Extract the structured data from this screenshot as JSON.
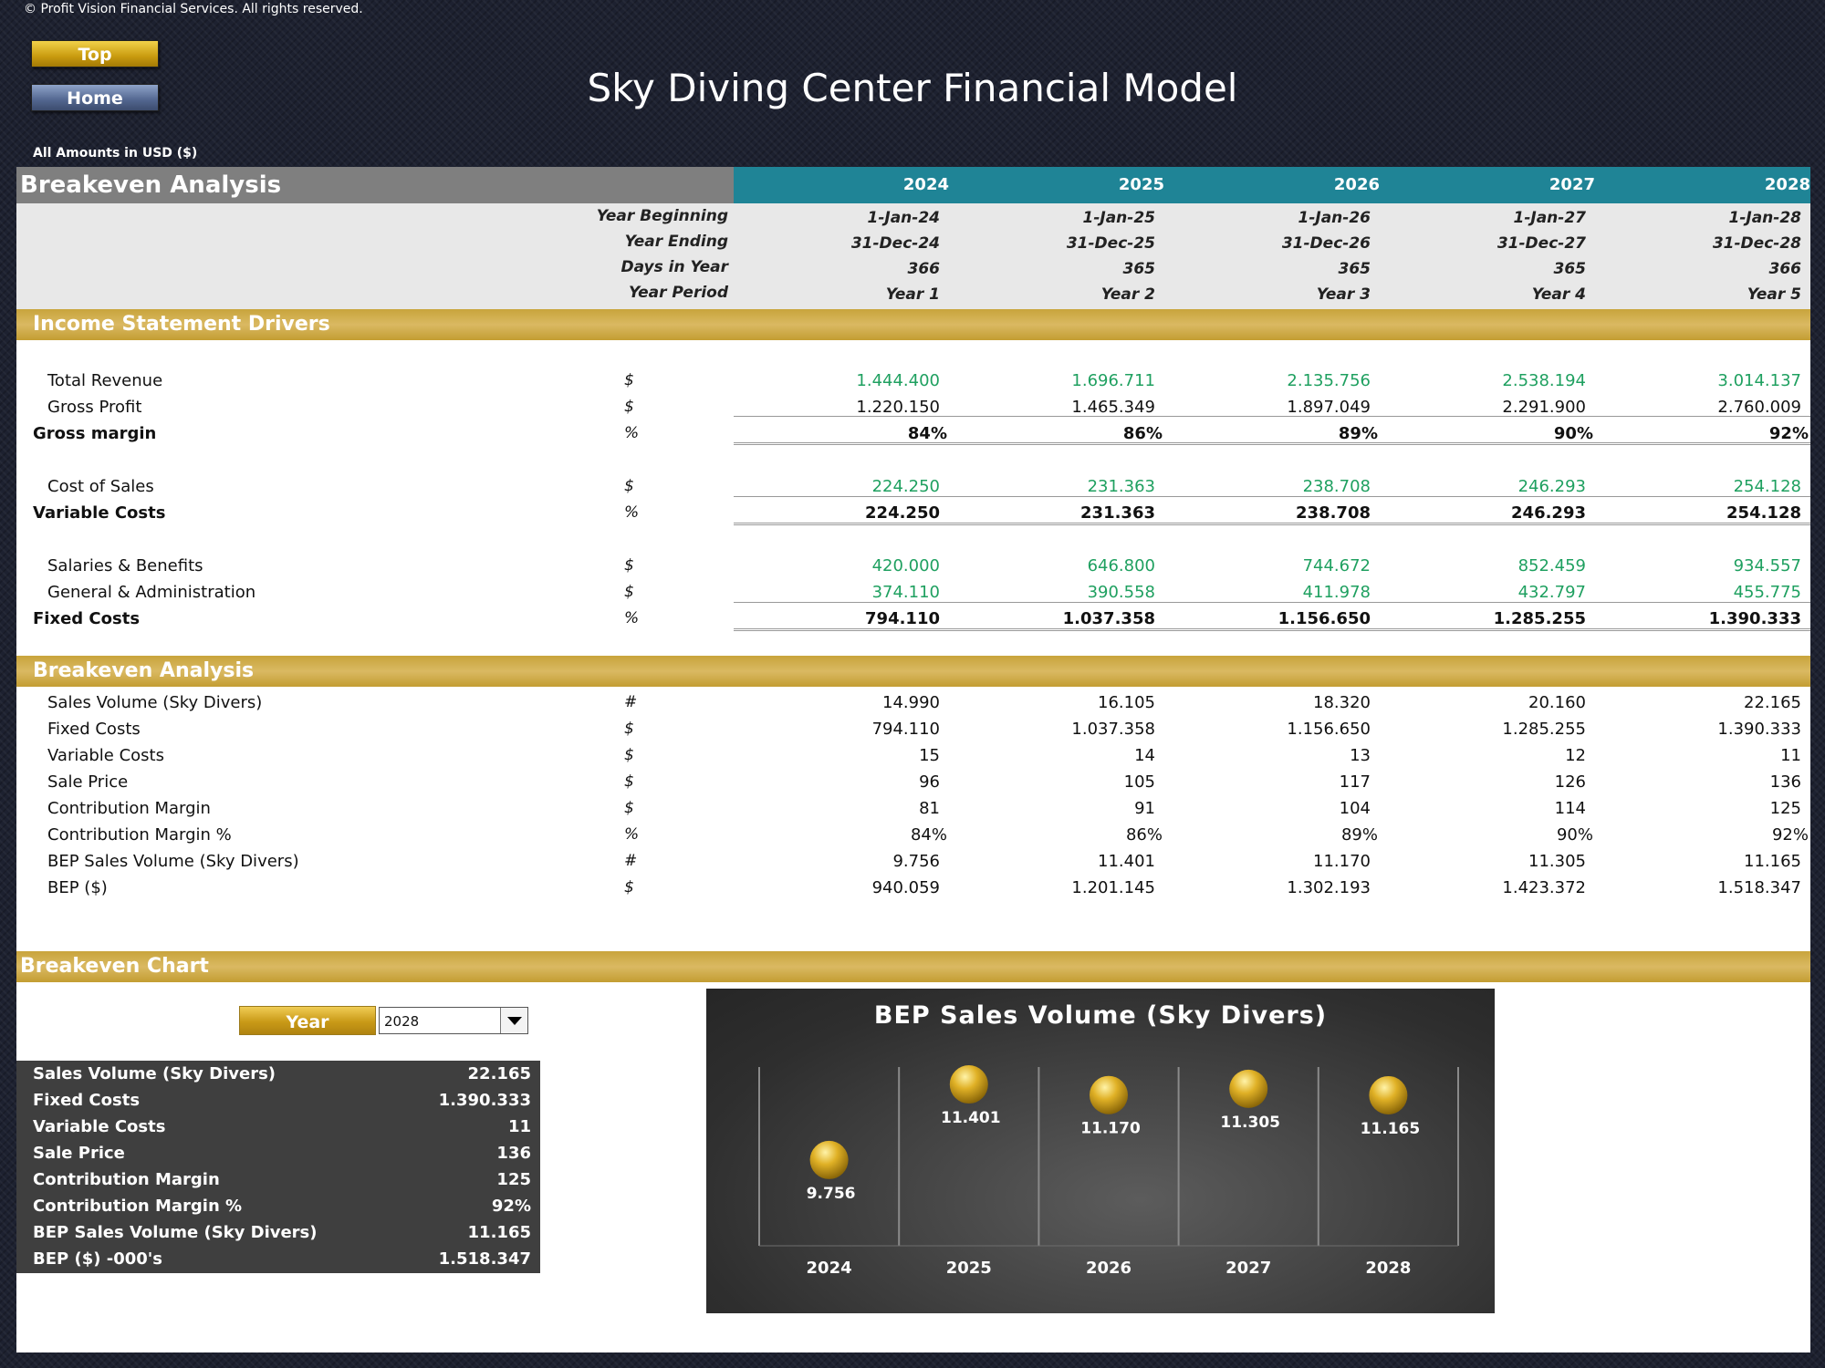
{
  "copyright": "© Profit Vision Financial Services. All rights reserved.",
  "buttons": {
    "top": "Top",
    "home": "Home"
  },
  "title": "Sky Diving Center Financial Model",
  "amounts_note": "All Amounts in  USD ($)",
  "header": {
    "section": "Breakeven Analysis",
    "years": [
      "2024",
      "2025",
      "2026",
      "2027",
      "2028"
    ]
  },
  "dates": [
    {
      "label": "Year Beginning",
      "values": [
        "1-Jan-24",
        "1-Jan-25",
        "1-Jan-26",
        "1-Jan-27",
        "1-Jan-28"
      ]
    },
    {
      "label": "Year Ending",
      "values": [
        "31-Dec-24",
        "31-Dec-25",
        "31-Dec-26",
        "31-Dec-27",
        "31-Dec-28"
      ]
    },
    {
      "label": "Days in Year",
      "values": [
        "366",
        "365",
        "365",
        "365",
        "366"
      ]
    },
    {
      "label": "Year Period",
      "values": [
        "Year 1",
        "Year 2",
        "Year 3",
        "Year 4",
        "Year 5"
      ]
    }
  ],
  "income": {
    "title": "Income Statement Drivers",
    "rows": [
      {
        "label": "Total Revenue",
        "unit": "$",
        "values": [
          "1.444.400",
          "1.696.711",
          "2.135.756",
          "2.538.194",
          "3.014.137"
        ]
      },
      {
        "label": "Gross Profit",
        "unit": "$",
        "values": [
          "1.220.150",
          "1.465.349",
          "1.897.049",
          "2.291.900",
          "2.760.009"
        ]
      },
      {
        "label": "Gross margin",
        "unit": "%",
        "values": [
          "84%",
          "86%",
          "89%",
          "90%",
          "92%"
        ]
      },
      {
        "label": "Cost of Sales",
        "unit": "$",
        "values": [
          "224.250",
          "231.363",
          "238.708",
          "246.293",
          "254.128"
        ]
      },
      {
        "label": "Variable Costs",
        "unit": "%",
        "values": [
          "224.250",
          "231.363",
          "238.708",
          "246.293",
          "254.128"
        ]
      },
      {
        "label": "Salaries & Benefits",
        "unit": "$",
        "values": [
          "420.000",
          "646.800",
          "744.672",
          "852.459",
          "934.557"
        ]
      },
      {
        "label": "General & Administration",
        "unit": "$",
        "values": [
          "374.110",
          "390.558",
          "411.978",
          "432.797",
          "455.775"
        ]
      },
      {
        "label": "Fixed Costs",
        "unit": "%",
        "values": [
          "794.110",
          "1.037.358",
          "1.156.650",
          "1.285.255",
          "1.390.333"
        ]
      }
    ]
  },
  "breakeven": {
    "title": "Breakeven Analysis",
    "rows": [
      {
        "label": "Sales Volume (Sky Divers)",
        "unit": "#",
        "values": [
          "14.990",
          "16.105",
          "18.320",
          "20.160",
          "22.165"
        ]
      },
      {
        "label": "Fixed Costs",
        "unit": "$",
        "values": [
          "794.110",
          "1.037.358",
          "1.156.650",
          "1.285.255",
          "1.390.333"
        ]
      },
      {
        "label": "Variable Costs",
        "unit": "$",
        "values": [
          "15",
          "14",
          "13",
          "12",
          "11"
        ]
      },
      {
        "label": "Sale Price",
        "unit": "$",
        "values": [
          "96",
          "105",
          "117",
          "126",
          "136"
        ]
      },
      {
        "label": "Contribution Margin",
        "unit": "$",
        "values": [
          "81",
          "91",
          "104",
          "114",
          "125"
        ]
      },
      {
        "label": "Contribution Margin %",
        "unit": "%",
        "values": [
          "84%",
          "86%",
          "89%",
          "90%",
          "92%"
        ]
      },
      {
        "label": "BEP Sales Volume (Sky Divers)",
        "unit": "#",
        "values": [
          "9.756",
          "11.401",
          "11.170",
          "11.305",
          "11.165"
        ]
      },
      {
        "label": "BEP ($)",
        "unit": "$",
        "values": [
          "940.059",
          "1.201.145",
          "1.302.193",
          "1.423.372",
          "1.518.347"
        ]
      }
    ]
  },
  "chart_section": {
    "title": "Breakeven Chart",
    "year_label": "Year",
    "year_value": "2028",
    "summary": [
      {
        "label": "Sales Volume (Sky Divers)",
        "value": "22.165"
      },
      {
        "label": "Fixed Costs",
        "value": "1.390.333"
      },
      {
        "label": "Variable Costs",
        "value": "11"
      },
      {
        "label": "Sale Price",
        "value": "136"
      },
      {
        "label": "Contribution Margin",
        "value": "125"
      },
      {
        "label": "Contribution Margin %",
        "value": "92%"
      },
      {
        "label": "BEP Sales Volume (Sky Divers)",
        "value": "11.165"
      },
      {
        "label": "BEP ($) -000's",
        "value": "1.518.347"
      }
    ]
  },
  "colors": {
    "header_teal": "#1f8496",
    "band_gold": "#d4b055",
    "green_value": "#1fa060",
    "marker_gold": "#e0b126"
  },
  "chart_data": {
    "type": "scatter",
    "title": "BEP Sales Volume (Sky Divers)",
    "categories": [
      "2024",
      "2025",
      "2026",
      "2027",
      "2028"
    ],
    "values": [
      9756,
      11401,
      11170,
      11305,
      11165
    ],
    "labels": [
      "9.756",
      "11.401",
      "11.170",
      "11.305",
      "11.165"
    ],
    "grid": "vertical",
    "legend": "none"
  }
}
